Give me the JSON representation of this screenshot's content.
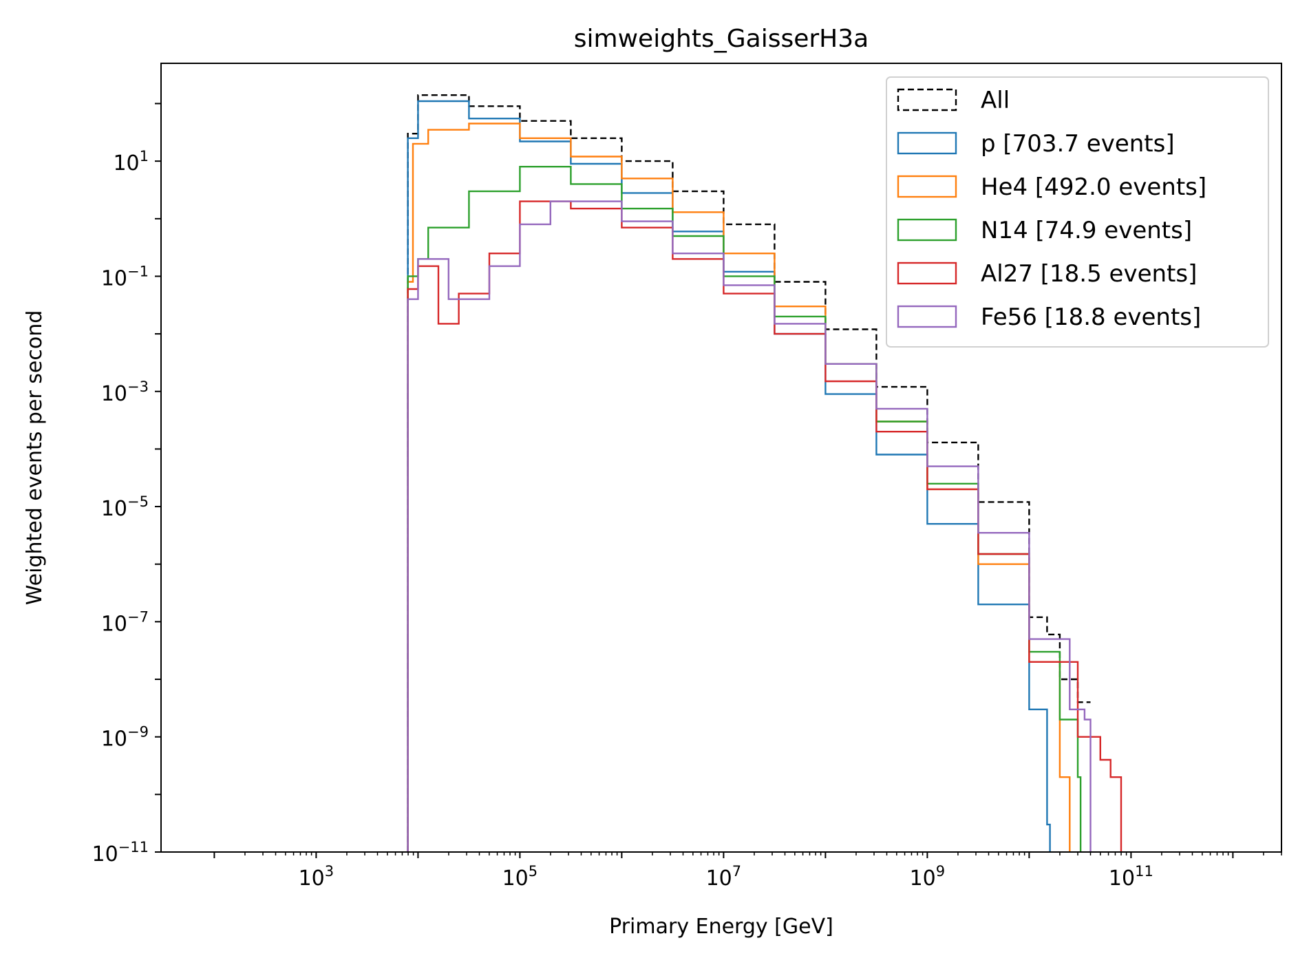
{
  "chart_data": {
    "type": "histogram-step",
    "title": "simweights_GaisserH3a",
    "xlabel": "Primary Energy [GeV]",
    "ylabel": "Weighted events per second",
    "xscale": "log",
    "yscale": "log",
    "xlim": [
      30,
      3000000000000.0
    ],
    "ylim": [
      1e-11,
      500
    ],
    "x_ticks": [
      {
        "base": "10",
        "exp": "3",
        "value": 1000.0
      },
      {
        "base": "10",
        "exp": "5",
        "value": 100000.0
      },
      {
        "base": "10",
        "exp": "7",
        "value": 10000000.0
      },
      {
        "base": "10",
        "exp": "9",
        "value": 1000000000.0
      },
      {
        "base": "10",
        "exp": "11",
        "value": 100000000000.0
      }
    ],
    "y_ticks": [
      {
        "base": "10",
        "exp": "1",
        "value": 10
      },
      {
        "base": "10",
        "exp": "−1",
        "value": 0.1
      },
      {
        "base": "10",
        "exp": "−3",
        "value": 0.001
      },
      {
        "base": "10",
        "exp": "−5",
        "value": 1e-05
      },
      {
        "base": "10",
        "exp": "−7",
        "value": 1e-07
      },
      {
        "base": "10",
        "exp": "−9",
        "value": 1e-09
      },
      {
        "base": "10",
        "exp": "−11",
        "value": 1e-11
      }
    ],
    "legend_position": "top-right",
    "series": [
      {
        "name": "All",
        "color": "#000000",
        "dashed": true,
        "points": [
          [
            7943,
            30
          ],
          [
            10000,
            140
          ],
          [
            31623,
            90
          ],
          [
            100000,
            50
          ],
          [
            316228,
            25
          ],
          [
            1000000,
            10
          ],
          [
            3162278,
            3
          ],
          [
            10000000,
            0.8
          ],
          [
            31622777,
            0.08
          ],
          [
            100000000,
            0.012
          ],
          [
            316227766,
            0.0012
          ],
          [
            1000000000,
            0.00013
          ],
          [
            3162277660,
            1.2e-05
          ],
          [
            10000000000,
            1.2e-07
          ],
          [
            15000000000,
            6e-08
          ],
          [
            20000000000,
            1e-08
          ],
          [
            30000000000,
            4e-09
          ],
          [
            40000000000,
            4e-09
          ]
        ]
      },
      {
        "name": "p [703.7 events]",
        "color": "#1f77b4",
        "dashed": false,
        "points": [
          [
            7943,
            25
          ],
          [
            10000,
            110
          ],
          [
            31623,
            55
          ],
          [
            100000,
            22
          ],
          [
            316228,
            9
          ],
          [
            1000000,
            2.8
          ],
          [
            3162278,
            0.6
          ],
          [
            10000000,
            0.12
          ],
          [
            31622777,
            0.01
          ],
          [
            100000000,
            0.0009
          ],
          [
            316227766,
            8e-05
          ],
          [
            1000000000,
            5e-06
          ],
          [
            3162277660,
            2e-07
          ],
          [
            10000000000,
            3e-09
          ],
          [
            15000000000,
            3e-11
          ],
          [
            16000000000,
            1e-11
          ]
        ]
      },
      {
        "name": "He4 [492.0 events]",
        "color": "#ff7f0e",
        "dashed": false,
        "points": [
          [
            7943,
            0.08
          ],
          [
            8913,
            20
          ],
          [
            12589,
            35
          ],
          [
            31623,
            45
          ],
          [
            100000,
            25
          ],
          [
            316228,
            12
          ],
          [
            1000000,
            5
          ],
          [
            3162278,
            1.3
          ],
          [
            10000000,
            0.25
          ],
          [
            31622777,
            0.03
          ],
          [
            100000000,
            0.003
          ],
          [
            316227766,
            0.0003
          ],
          [
            1000000000,
            2e-05
          ],
          [
            3162277660,
            1e-06
          ],
          [
            10000000000,
            2e-08
          ],
          [
            20000000000,
            2e-10
          ],
          [
            25000000000,
            1e-11
          ]
        ]
      },
      {
        "name": "N14 [74.9 events]",
        "color": "#2ca02c",
        "dashed": false,
        "points": [
          [
            7943,
            0.1
          ],
          [
            10000,
            0.2
          ],
          [
            12589,
            0.7
          ],
          [
            31623,
            3
          ],
          [
            100000,
            8
          ],
          [
            316228,
            4
          ],
          [
            1000000,
            1.5
          ],
          [
            3162278,
            0.5
          ],
          [
            10000000,
            0.1
          ],
          [
            31622777,
            0.02
          ],
          [
            100000000,
            0.003
          ],
          [
            316227766,
            0.0003
          ],
          [
            1000000000,
            2.5e-05
          ],
          [
            3162277660,
            1.5e-06
          ],
          [
            10000000000,
            3e-08
          ],
          [
            20000000000,
            2e-09
          ],
          [
            30000000000,
            2e-10
          ],
          [
            32000000000,
            1e-11
          ]
        ]
      },
      {
        "name": "Al27 [18.5 events]",
        "color": "#d62728",
        "dashed": false,
        "points": [
          [
            7943,
            0.06
          ],
          [
            10000,
            0.15
          ],
          [
            15849,
            0.015
          ],
          [
            25119,
            0.05
          ],
          [
            50119,
            0.25
          ],
          [
            100000,
            2
          ],
          [
            316228,
            1.5
          ],
          [
            1000000,
            0.7
          ],
          [
            3162278,
            0.2
          ],
          [
            10000000,
            0.05
          ],
          [
            31622777,
            0.01
          ],
          [
            100000000,
            0.0015
          ],
          [
            316227766,
            0.0002
          ],
          [
            1000000000,
            2e-05
          ],
          [
            3162277660,
            1.5e-06
          ],
          [
            10000000000,
            2e-08
          ],
          [
            30000000000,
            1e-09
          ],
          [
            50000000000,
            4e-10
          ],
          [
            63000000000,
            2e-10
          ],
          [
            80000000000,
            1e-11
          ]
        ]
      },
      {
        "name": "Fe56 [18.8 events]",
        "color": "#9467bd",
        "dashed": false,
        "points": [
          [
            7943,
            0.04
          ],
          [
            10000,
            0.2
          ],
          [
            19953,
            0.04
          ],
          [
            50119,
            0.15
          ],
          [
            100000,
            0.8
          ],
          [
            199526,
            2
          ],
          [
            1000000,
            0.9
          ],
          [
            3162278,
            0.25
          ],
          [
            10000000,
            0.07
          ],
          [
            31622777,
            0.015
          ],
          [
            100000000,
            0.003
          ],
          [
            316227766,
            0.0005
          ],
          [
            1000000000,
            5e-05
          ],
          [
            3162277660,
            3.5e-06
          ],
          [
            10000000000,
            5e-08
          ],
          [
            25000000000,
            3e-09
          ],
          [
            35000000000,
            2e-09
          ],
          [
            40000000000,
            1e-11
          ]
        ]
      }
    ]
  }
}
